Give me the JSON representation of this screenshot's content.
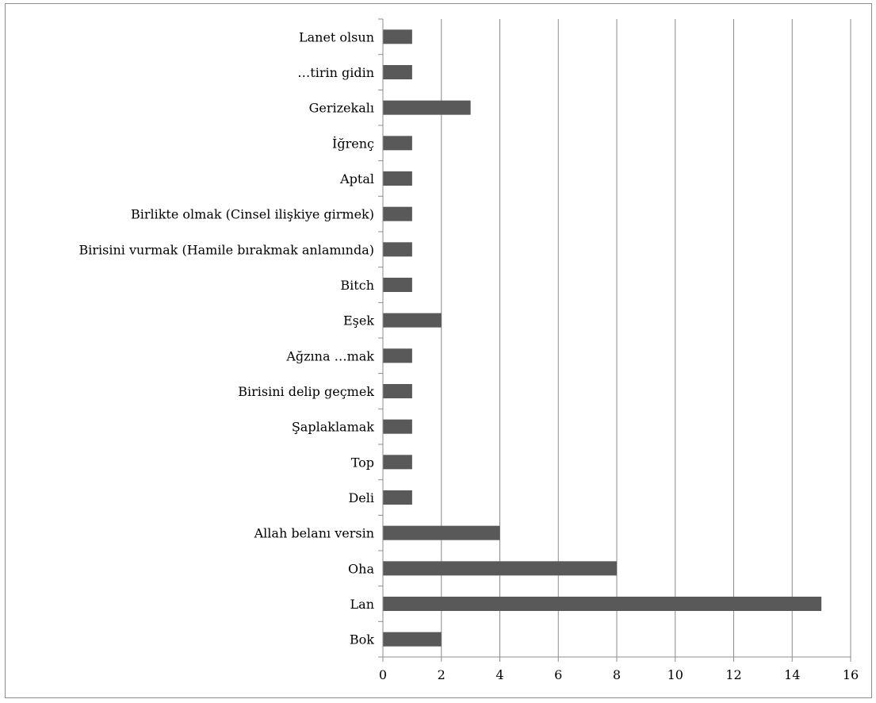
{
  "chart_data": {
    "type": "bar",
    "orientation": "horizontal",
    "categories": [
      "Bok",
      "Lan",
      "Oha",
      "Allah belanı versin",
      "Deli",
      "Top",
      "Şaplaklamak",
      "Birisini delip geçmek",
      "Ağzına …mak",
      "Eşek",
      "Bitch",
      "Birisini vurmak (Hamile bırakmak anlamında)",
      "Birlikte olmak (Cinsel ilişkiye girmek)",
      "Aptal",
      "İğrenç",
      "Gerizekalı",
      "…tirin gidin",
      "Lanet olsun"
    ],
    "values": [
      2,
      15,
      8,
      4,
      1,
      1,
      1,
      1,
      1,
      2,
      1,
      1,
      1,
      1,
      1,
      3,
      1,
      1
    ],
    "xlim": [
      0,
      16
    ],
    "xticks": [
      "0",
      "2",
      "4",
      "6",
      "8",
      "10",
      "12",
      "14",
      "16"
    ],
    "grid": "vertical",
    "legend": "none",
    "colors": {
      "bar": "#595959",
      "grid": "#8c8c8c",
      "axis": "#8c8c8c"
    }
  }
}
